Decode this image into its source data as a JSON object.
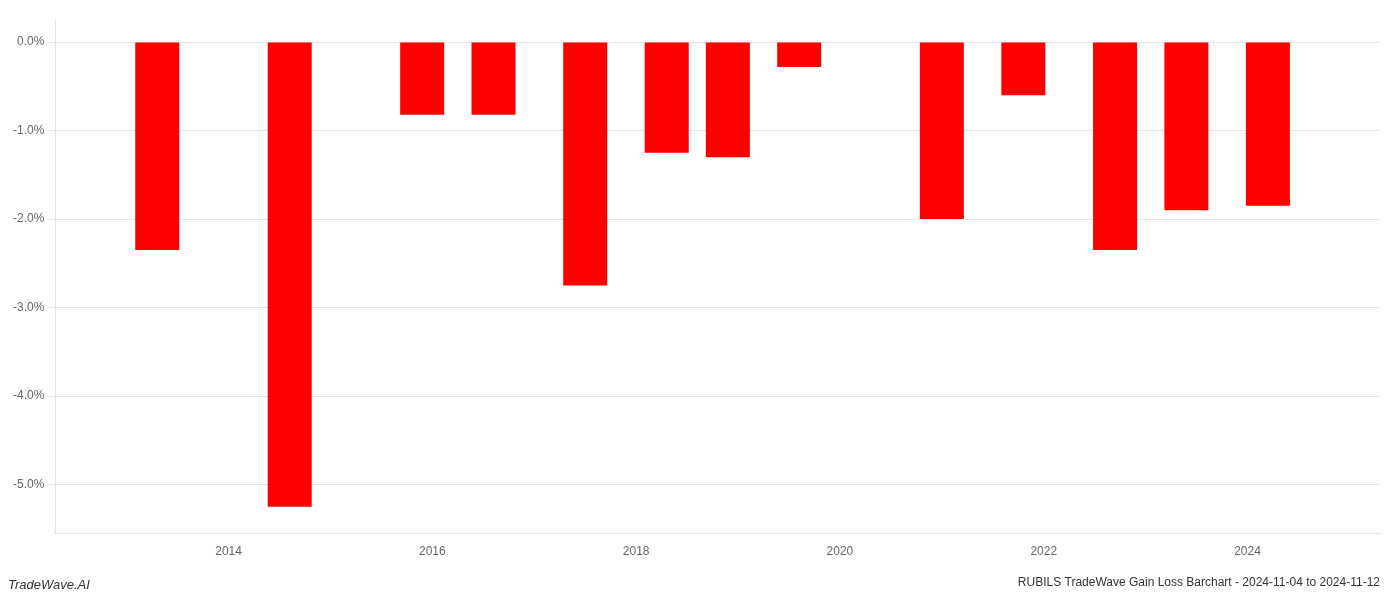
{
  "chart_data": {
    "type": "bar",
    "title": "RUBILS TradeWave Gain Loss Barchart - 2024-11-04 to 2024-11-12",
    "annotations": [
      "TradeWave.AI"
    ],
    "x": [
      2013.3,
      2014.6,
      2015.9,
      2016.6,
      2017.5,
      2018.3,
      2018.9,
      2019.6,
      2021.0,
      2021.8,
      2022.7,
      2023.4,
      2024.2
    ],
    "values": [
      -2.35,
      -5.25,
      -0.82,
      -0.82,
      -2.75,
      -1.25,
      -1.3,
      -0.28,
      -2.0,
      -0.6,
      -2.35,
      -1.9,
      -1.85
    ],
    "color": "#ff0000",
    "xlim": [
      2012.3,
      2025.3
    ],
    "xticks": [
      2014,
      2016,
      2018,
      2020,
      2022,
      2024
    ],
    "ylim": [
      -5.55,
      0.25
    ],
    "yticks": [
      {
        "value": 0.0,
        "label": "0.0%"
      },
      {
        "value": -1.0,
        "label": "-1.0%"
      },
      {
        "value": -2.0,
        "label": "-2.0%"
      },
      {
        "value": -3.0,
        "label": "-3.0%"
      },
      {
        "value": -4.0,
        "label": "-4.0%"
      },
      {
        "value": -5.0,
        "label": "-5.0%"
      }
    ],
    "grid": true
  }
}
